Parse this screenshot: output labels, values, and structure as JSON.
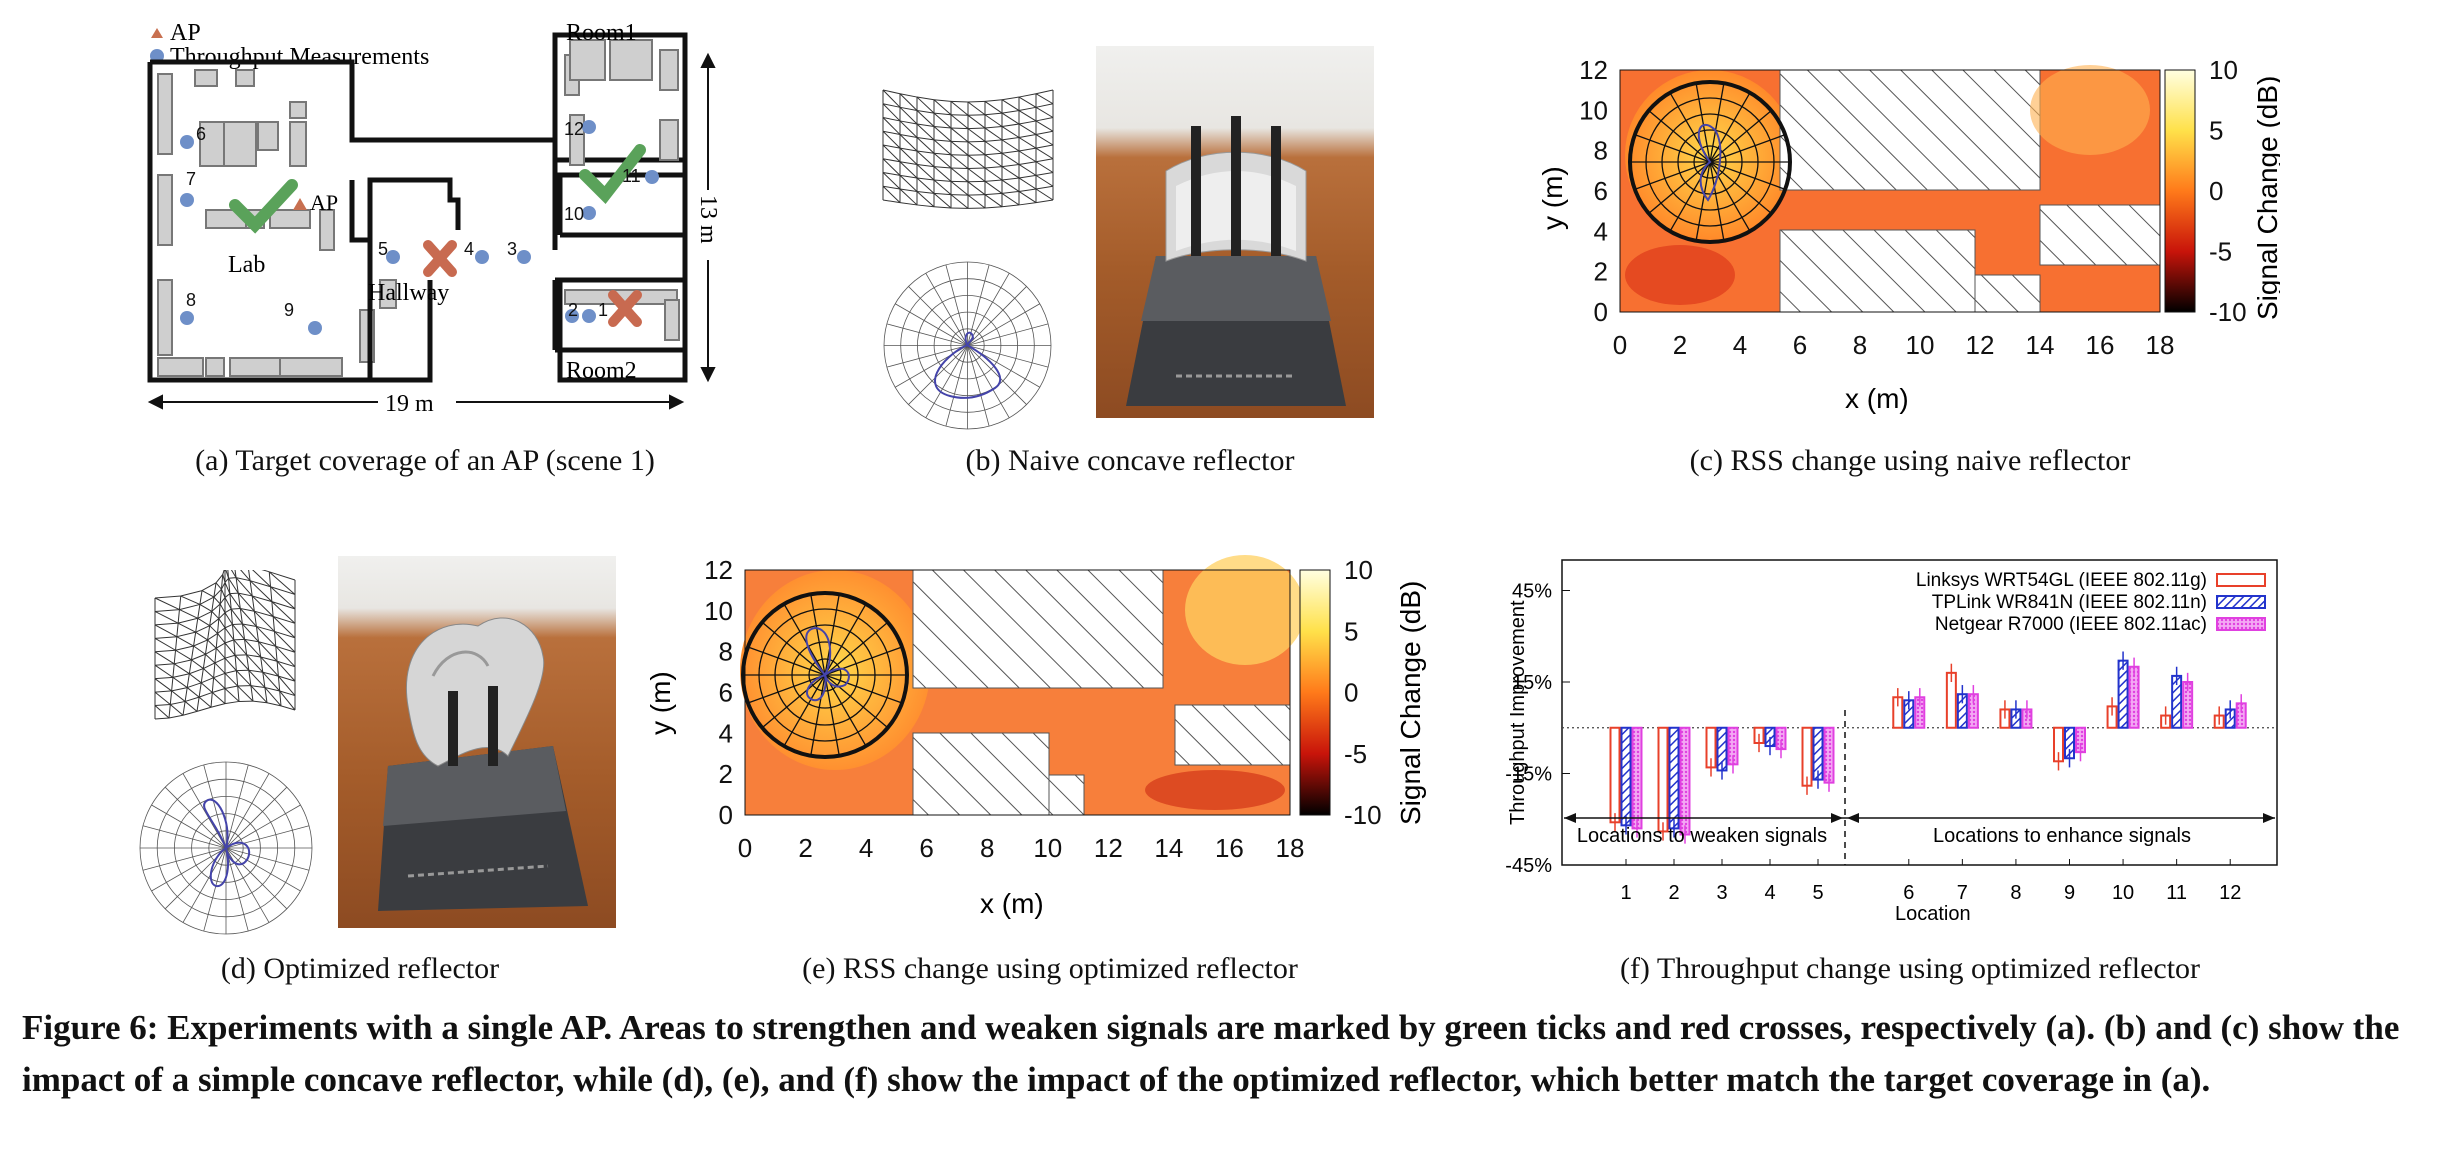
{
  "panel_a": {
    "legend_ap": "AP",
    "legend_meas": "Throughput Measurements",
    "room1": "Room1",
    "room2": "Room2",
    "lab": "Lab",
    "hallway": "Hallway",
    "ap_label": "AP",
    "width_label": "19 m",
    "height_label": "13 m",
    "points": [
      "1",
      "2",
      "3",
      "4",
      "5",
      "6",
      "7",
      "8",
      "9",
      "10",
      "11",
      "12"
    ],
    "caption": "(a)  Target coverage of an AP (scene 1)"
  },
  "panel_b": {
    "caption": "(b)  Naive concave reflector"
  },
  "panel_c": {
    "caption": "(c)  RSS change using naive reflector",
    "xlabel": "x (m)",
    "ylabel": "y (m)",
    "cbar_label": "Signal Change (dB)",
    "xticks": [
      "0",
      "2",
      "4",
      "6",
      "8",
      "10",
      "12",
      "14",
      "16",
      "18"
    ],
    "yticks": [
      "0",
      "2",
      "4",
      "6",
      "8",
      "10",
      "12"
    ],
    "cticks": [
      "10",
      "5",
      "0",
      "-5",
      "-10"
    ]
  },
  "panel_d": {
    "caption": "(d)  Optimized reflector"
  },
  "panel_e": {
    "caption": "(e)  RSS change using optimized reflector",
    "xlabel": "x (m)",
    "ylabel": "y (m)",
    "cbar_label": "Signal Change (dB)",
    "xticks": [
      "0",
      "2",
      "4",
      "6",
      "8",
      "10",
      "12",
      "14",
      "16",
      "18"
    ],
    "yticks": [
      "0",
      "2",
      "4",
      "6",
      "8",
      "10",
      "12"
    ],
    "cticks": [
      "10",
      "5",
      "0",
      "-5",
      "-10"
    ]
  },
  "panel_f": {
    "caption": "(f)  Throughput change using optimized reflector",
    "ylabel": "Throughput Improvement",
    "xlabel": "Location",
    "weaken_label": "Locations to weaken signals",
    "enhance_label": "Locations to enhance signals",
    "yticks": [
      "45%",
      "15%",
      "-15%",
      "-45%"
    ]
  },
  "chart_data": {
    "type": "bar",
    "categories": [
      "1",
      "2",
      "3",
      "4",
      "5",
      "6",
      "7",
      "8",
      "9",
      "10",
      "11",
      "12"
    ],
    "series": [
      {
        "name": "Linksys WRT54GL (IEEE 802.11g)",
        "color": "#e8402a",
        "values": [
          -31,
          -34,
          -13,
          -5,
          -19,
          10,
          18,
          6,
          -11,
          7,
          4,
          4
        ]
      },
      {
        "name": "TPLink WR841N (IEEE 802.11n)",
        "color": "#2233cc",
        "values": [
          -32,
          -33,
          -14,
          -6,
          -17,
          9,
          11,
          6,
          -10,
          22,
          17,
          6
        ]
      },
      {
        "name": "Netgear R7000 (IEEE 802.11ac)",
        "color": "#e040e0",
        "values": [
          -33,
          -35,
          -12,
          -7,
          -18,
          10,
          11,
          6,
          -8,
          20,
          15,
          8
        ]
      }
    ],
    "ylim": [
      -45,
      55
    ],
    "yticks": [
      45,
      15,
      -15,
      -45
    ],
    "divider_after": 5
  },
  "figure_caption": "Figure 6: Experiments with a single AP. Areas to strengthen and weaken signals are marked by green ticks and red crosses, respectively (a). (b) and (c) show the impact of a simple concave reflector, while (d), (e), and (f) show the impact of the optimized reflector, which better match the target coverage in (a)."
}
